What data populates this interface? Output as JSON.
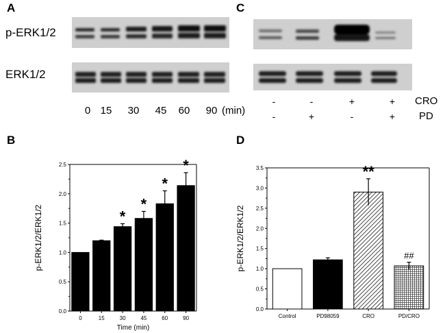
{
  "panels": {
    "A": {
      "letter": "A",
      "row_labels": [
        "p-ERK1/2",
        "ERK1/2"
      ],
      "time_points": [
        "0",
        "15",
        "30",
        "45",
        "60",
        "90"
      ],
      "time_unit": "(min)"
    },
    "C": {
      "letter": "C",
      "cro_label": "CRO",
      "pd_label": "PD",
      "cro_signs": [
        "-",
        "-",
        "+",
        "+"
      ],
      "pd_signs": [
        "-",
        "+",
        "-",
        "+"
      ]
    },
    "B": {
      "letter": "B"
    },
    "D": {
      "letter": "D"
    }
  },
  "chart_data": [
    {
      "id": "B",
      "type": "bar",
      "categories": [
        "0",
        "15",
        "30",
        "45",
        "60",
        "90"
      ],
      "values": [
        1.0,
        1.2,
        1.44,
        1.58,
        1.83,
        2.14
      ],
      "errors": [
        0.0,
        0.01,
        0.05,
        0.12,
        0.22,
        0.22
      ],
      "significance": [
        "",
        "",
        "*",
        "*",
        "*",
        "*"
      ],
      "xlabel": "Time (min)",
      "ylabel": "p-ERK1/2/ERK1/2",
      "yticks": [
        "0.0",
        "0.5",
        "1.0",
        "1.5",
        "2.0",
        "2.5"
      ],
      "ylim": [
        0,
        2.5
      ],
      "bar_color": "#000000"
    },
    {
      "id": "D",
      "type": "bar",
      "categories": [
        "Control",
        "PD98059",
        "CRO",
        "PD/CRO"
      ],
      "values": [
        1.0,
        1.22,
        2.9,
        1.07
      ],
      "errors": [
        0.0,
        0.05,
        0.33,
        0.09
      ],
      "significance": [
        "",
        "",
        "**",
        "##"
      ],
      "bar_fills": [
        "white",
        "solid",
        "hatch",
        "grid"
      ],
      "ylabel": "p-ERK1/2/ERK1/2",
      "yticks": [
        "0.0",
        "0.5",
        "1.0",
        "1.5",
        "2.0",
        "2.5",
        "3.0",
        "3.5"
      ],
      "ylim": [
        0,
        3.5
      ]
    }
  ]
}
